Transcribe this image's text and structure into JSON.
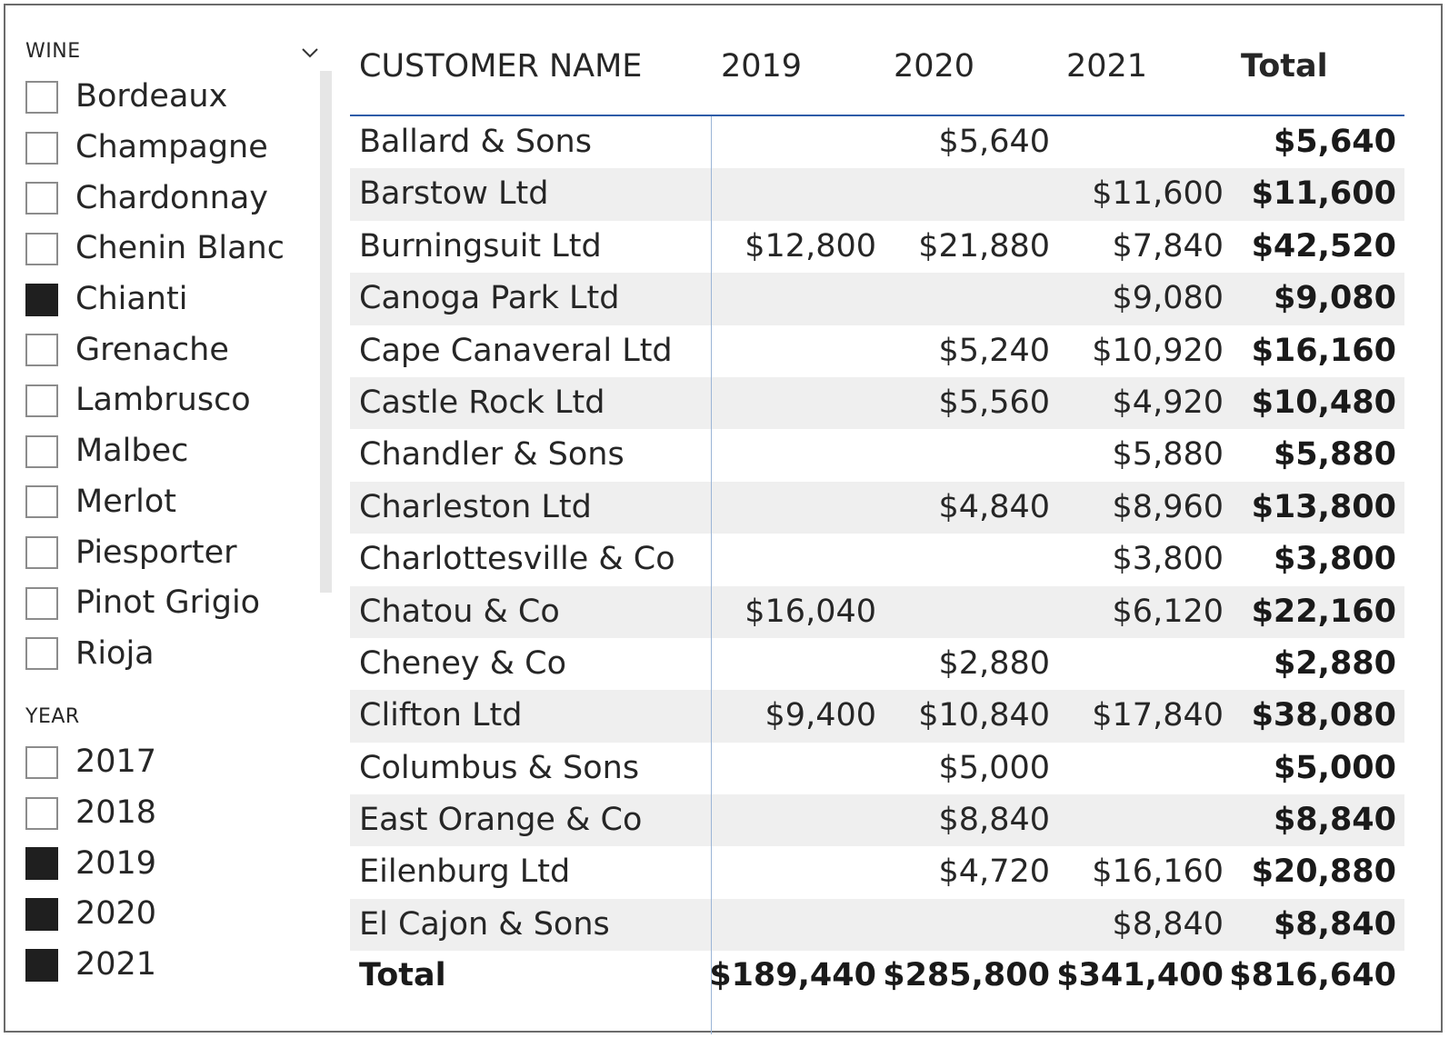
{
  "wine_slicer": {
    "title": "WINE",
    "chevron_icon": "chevron-down-icon",
    "items": [
      {
        "label": "Bordeaux",
        "checked": false
      },
      {
        "label": "Champagne",
        "checked": false
      },
      {
        "label": "Chardonnay",
        "checked": false
      },
      {
        "label": "Chenin Blanc",
        "checked": false
      },
      {
        "label": "Chianti",
        "checked": true
      },
      {
        "label": "Grenache",
        "checked": false
      },
      {
        "label": "Lambrusco",
        "checked": false
      },
      {
        "label": "Malbec",
        "checked": false
      },
      {
        "label": "Merlot",
        "checked": false
      },
      {
        "label": "Piesporter",
        "checked": false
      },
      {
        "label": "Pinot Grigio",
        "checked": false
      },
      {
        "label": "Rioja",
        "checked": false
      }
    ]
  },
  "year_slicer": {
    "title": "YEAR",
    "items": [
      {
        "label": "2017",
        "checked": false
      },
      {
        "label": "2018",
        "checked": false
      },
      {
        "label": "2019",
        "checked": true
      },
      {
        "label": "2020",
        "checked": true
      },
      {
        "label": "2021",
        "checked": true
      }
    ]
  },
  "matrix": {
    "headers": {
      "name": "CUSTOMER NAME",
      "y2019": "2019",
      "y2020": "2020",
      "y2021": "2021",
      "total": "Total"
    },
    "rows": [
      {
        "name": "Ballard & Sons",
        "y2019": "",
        "y2020": "$5,640",
        "y2021": "",
        "total": "$5,640"
      },
      {
        "name": "Barstow Ltd",
        "y2019": "",
        "y2020": "",
        "y2021": "$11,600",
        "total": "$11,600"
      },
      {
        "name": "Burningsuit Ltd",
        "y2019": "$12,800",
        "y2020": "$21,880",
        "y2021": "$7,840",
        "total": "$42,520"
      },
      {
        "name": "Canoga Park Ltd",
        "y2019": "",
        "y2020": "",
        "y2021": "$9,080",
        "total": "$9,080"
      },
      {
        "name": "Cape Canaveral Ltd",
        "y2019": "",
        "y2020": "$5,240",
        "y2021": "$10,920",
        "total": "$16,160"
      },
      {
        "name": "Castle Rock Ltd",
        "y2019": "",
        "y2020": "$5,560",
        "y2021": "$4,920",
        "total": "$10,480"
      },
      {
        "name": "Chandler & Sons",
        "y2019": "",
        "y2020": "",
        "y2021": "$5,880",
        "total": "$5,880"
      },
      {
        "name": "Charleston Ltd",
        "y2019": "",
        "y2020": "$4,840",
        "y2021": "$8,960",
        "total": "$13,800"
      },
      {
        "name": "Charlottesville & Co",
        "y2019": "",
        "y2020": "",
        "y2021": "$3,800",
        "total": "$3,800"
      },
      {
        "name": "Chatou & Co",
        "y2019": "$16,040",
        "y2020": "",
        "y2021": "$6,120",
        "total": "$22,160"
      },
      {
        "name": "Cheney & Co",
        "y2019": "",
        "y2020": "$2,880",
        "y2021": "",
        "total": "$2,880"
      },
      {
        "name": "Clifton Ltd",
        "y2019": "$9,400",
        "y2020": "$10,840",
        "y2021": "$17,840",
        "total": "$38,080"
      },
      {
        "name": "Columbus & Sons",
        "y2019": "",
        "y2020": "$5,000",
        "y2021": "",
        "total": "$5,000"
      },
      {
        "name": "East Orange & Co",
        "y2019": "",
        "y2020": "$8,840",
        "y2021": "",
        "total": "$8,840"
      },
      {
        "name": "Eilenburg Ltd",
        "y2019": "",
        "y2020": "$4,720",
        "y2021": "$16,160",
        "total": "$20,880"
      },
      {
        "name": "El Cajon & Sons",
        "y2019": "",
        "y2020": "",
        "y2021": "$8,840",
        "total": "$8,840"
      }
    ],
    "totals": {
      "label": "Total",
      "y2019": "$189,440",
      "y2020": "$285,800",
      "y2021": "$341,400",
      "total": "$816,640"
    }
  },
  "colors": {
    "header_rule": "#2e5da8",
    "row_band": "#efefef",
    "checkbox_checked": "#1f1f1f",
    "divider": "#9bb5d6"
  }
}
